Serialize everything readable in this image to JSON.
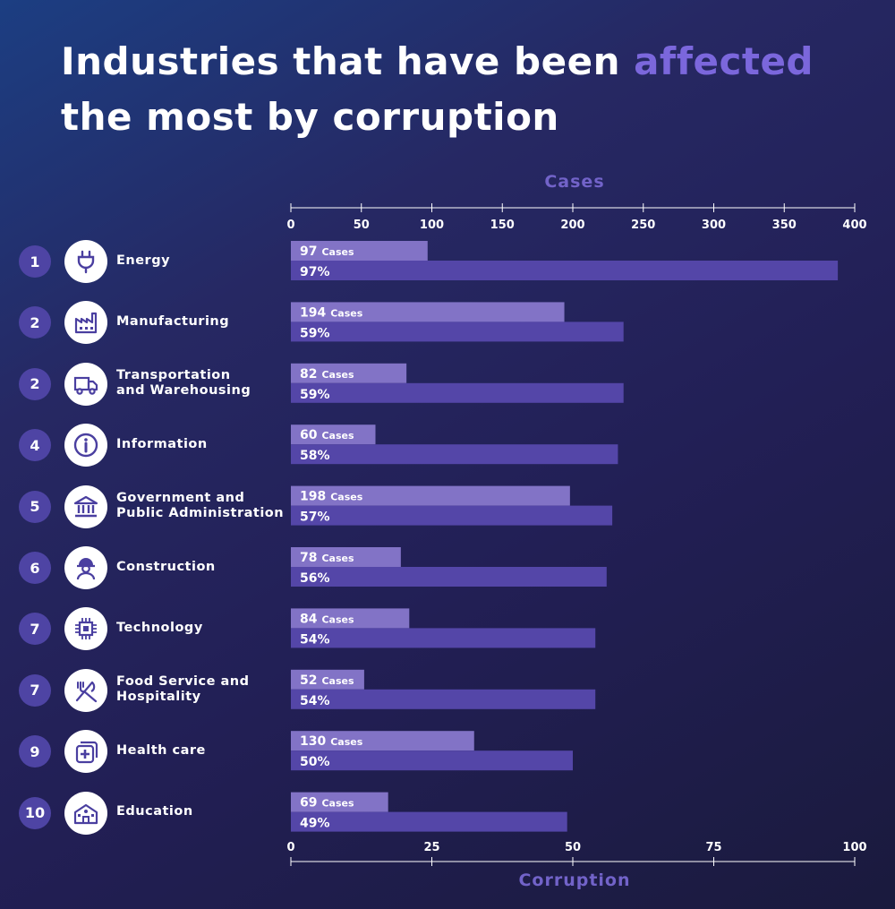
{
  "title": {
    "line1_text": "Industries that have been ",
    "line1_accent": "affected",
    "line2": "the most by corruption"
  },
  "colors": {
    "accent": "#7b67dc",
    "cases_bar": "#8273c6",
    "corruption_bar": "#5446a8",
    "rank_circle": "#4e44a4"
  },
  "chart_data": {
    "type": "bar",
    "orientation": "horizontal",
    "categories": [
      "Energy",
      "Manufacturing",
      "Transportation\nand Warehousing",
      "Information",
      "Government and\nPublic Administration",
      "Construction",
      "Technology",
      "Food Service and\nHospitality",
      "Health care",
      "Education"
    ],
    "ranks": [
      "1",
      "2",
      "2",
      "4",
      "5",
      "6",
      "7",
      "7",
      "9",
      "10"
    ],
    "icons": [
      "plug-icon",
      "factory-icon",
      "truck-icon",
      "info-icon",
      "government-building-icon",
      "hard-hat-worker-icon",
      "chip-icon",
      "fork-knife-icon",
      "health-care-icon",
      "school-building-icon"
    ],
    "series": [
      {
        "name": "Cases",
        "values": [
          97,
          194,
          82,
          60,
          198,
          78,
          84,
          52,
          130,
          69
        ],
        "label_suffix": "Cases",
        "axis": "top",
        "axis_title": "Cases",
        "xlim": [
          0,
          400
        ],
        "ticks": [
          0,
          50,
          100,
          150,
          200,
          250,
          300,
          350,
          400
        ]
      },
      {
        "name": "Corruption",
        "values": [
          97,
          59,
          59,
          58,
          57,
          56,
          54,
          54,
          50,
          49
        ],
        "label_suffix": "%",
        "axis": "bottom",
        "axis_title": "Corruption",
        "xlim": [
          0,
          100
        ],
        "ticks": [
          0,
          25,
          50,
          75,
          100
        ]
      }
    ]
  }
}
